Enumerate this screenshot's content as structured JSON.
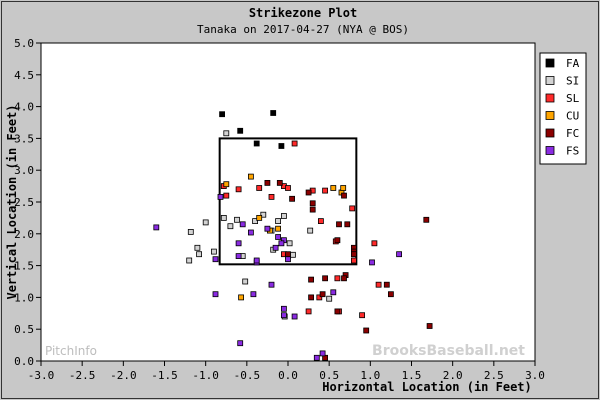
{
  "chart_data": {
    "type": "scatter",
    "title": "Strikezone Plot",
    "subtitle": "Tanaka on 2017-04-27 (NYA @ BOS)",
    "xlabel": "Horizontal Location (in Feet)",
    "ylabel": "Vertical Location (in Feet)",
    "xlim": [
      -3.0,
      3.0
    ],
    "ylim": [
      0.0,
      5.0
    ],
    "xticks": [
      "-3.0",
      "-2.5",
      "-2.0",
      "-1.5",
      "-1.0",
      "-0.5",
      "0.0",
      "0.5",
      "1.0",
      "1.5",
      "2.0",
      "2.5",
      "3.0"
    ],
    "yticks": [
      "0.0",
      "0.5",
      "1.0",
      "1.5",
      "2.0",
      "2.5",
      "3.0",
      "3.5",
      "4.0",
      "4.5",
      "5.0"
    ],
    "legend_position": "top-right",
    "strike_zone": {
      "x": [
        -0.83,
        0.83
      ],
      "y": [
        1.52,
        3.5
      ]
    },
    "watermarks": [
      "PitchInfo",
      "BrooksBaseball.net"
    ],
    "series": [
      {
        "name": "FA",
        "color": "#000000",
        "points": [
          [
            -0.8,
            3.88
          ],
          [
            -0.58,
            3.62
          ],
          [
            -0.18,
            3.9
          ],
          [
            -0.08,
            3.38
          ],
          [
            -0.38,
            3.42
          ]
        ]
      },
      {
        "name": "SI",
        "color": "#d3d3d3",
        "points": [
          [
            -0.75,
            3.58
          ],
          [
            -1.0,
            2.18
          ],
          [
            -1.18,
            2.03
          ],
          [
            -1.1,
            1.78
          ],
          [
            -1.2,
            1.58
          ],
          [
            -1.08,
            1.68
          ],
          [
            -0.9,
            1.72
          ],
          [
            -0.78,
            2.25
          ],
          [
            -0.7,
            2.12
          ],
          [
            -0.62,
            2.22
          ],
          [
            -0.55,
            1.65
          ],
          [
            -0.52,
            1.25
          ],
          [
            -0.4,
            2.2
          ],
          [
            -0.3,
            2.3
          ],
          [
            -0.12,
            2.2
          ],
          [
            -0.05,
            2.28
          ],
          [
            0.02,
            1.85
          ],
          [
            -0.2,
            2.05
          ],
          [
            0.27,
            2.05
          ],
          [
            -0.18,
            1.75
          ],
          [
            -0.04,
            0.7
          ],
          [
            0.5,
            0.98
          ],
          [
            0.06,
            1.67
          ]
        ]
      },
      {
        "name": "SL",
        "color": "#ff2a2a",
        "points": [
          [
            -0.78,
            2.75
          ],
          [
            -0.75,
            2.6
          ],
          [
            -0.6,
            2.7
          ],
          [
            0.08,
            3.42
          ],
          [
            -0.05,
            2.75
          ],
          [
            0.0,
            2.72
          ],
          [
            0.3,
            2.68
          ],
          [
            0.45,
            2.68
          ],
          [
            0.78,
            2.4
          ],
          [
            0.58,
            1.88
          ],
          [
            0.6,
            1.3
          ],
          [
            0.8,
            1.58
          ],
          [
            0.38,
            1.0
          ],
          [
            0.62,
            0.78
          ],
          [
            0.9,
            0.72
          ],
          [
            1.05,
            1.85
          ],
          [
            1.1,
            1.2
          ],
          [
            -0.2,
            2.58
          ],
          [
            0.4,
            2.2
          ],
          [
            -0.05,
            1.68
          ],
          [
            0.0,
            1.65
          ],
          [
            0.25,
            0.78
          ],
          [
            -0.35,
            2.72
          ]
        ]
      },
      {
        "name": "CU",
        "color": "#ffa500",
        "points": [
          [
            -0.75,
            2.78
          ],
          [
            -0.45,
            2.9
          ],
          [
            -0.35,
            2.25
          ],
          [
            -0.22,
            2.05
          ],
          [
            0.55,
            2.72
          ],
          [
            0.65,
            2.65
          ],
          [
            -0.57,
            1.0
          ],
          [
            0.67,
            2.72
          ],
          [
            -0.12,
            2.08
          ]
        ]
      },
      {
        "name": "FC",
        "color": "#8b0000",
        "points": [
          [
            -0.25,
            2.8
          ],
          [
            -0.1,
            2.8
          ],
          [
            0.25,
            2.65
          ],
          [
            0.05,
            2.55
          ],
          [
            0.68,
            2.6
          ],
          [
            0.72,
            2.15
          ],
          [
            0.8,
            1.78
          ],
          [
            0.8,
            1.72
          ],
          [
            0.8,
            1.68
          ],
          [
            0.6,
            1.9
          ],
          [
            0.62,
            2.15
          ],
          [
            0.7,
            1.35
          ],
          [
            0.68,
            1.3
          ],
          [
            0.45,
            1.3
          ],
          [
            0.28,
            1.28
          ],
          [
            0.28,
            1.0
          ],
          [
            0.42,
            1.05
          ],
          [
            0.6,
            0.78
          ],
          [
            0.45,
            0.05
          ],
          [
            0.95,
            0.48
          ],
          [
            1.25,
            1.05
          ],
          [
            1.2,
            1.2
          ],
          [
            1.68,
            2.22
          ],
          [
            1.72,
            0.55
          ],
          [
            0.3,
            2.48
          ],
          [
            0.3,
            2.38
          ],
          [
            0.0,
            1.68
          ]
        ]
      },
      {
        "name": "FS",
        "color": "#8a2be2",
        "points": [
          [
            -1.6,
            2.1
          ],
          [
            -0.88,
            1.6
          ],
          [
            -0.82,
            2.58
          ],
          [
            -0.6,
            1.85
          ],
          [
            -0.55,
            2.15
          ],
          [
            -0.45,
            2.02
          ],
          [
            -0.38,
            1.55
          ],
          [
            -0.25,
            2.08
          ],
          [
            -0.15,
            1.78
          ],
          [
            -0.05,
            1.9
          ],
          [
            -0.08,
            1.85
          ],
          [
            -0.38,
            1.58
          ],
          [
            -0.2,
            1.2
          ],
          [
            -0.42,
            1.05
          ],
          [
            -0.05,
            0.82
          ],
          [
            -0.05,
            0.72
          ],
          [
            0.08,
            0.7
          ],
          [
            -0.88,
            1.05
          ],
          [
            -0.58,
            0.28
          ],
          [
            0.42,
            0.12
          ],
          [
            0.35,
            0.05
          ],
          [
            1.02,
            1.55
          ],
          [
            1.35,
            1.68
          ],
          [
            0.55,
            1.08
          ],
          [
            -0.12,
            1.95
          ],
          [
            -0.6,
            1.65
          ],
          [
            0.0,
            1.6
          ]
        ]
      }
    ]
  }
}
